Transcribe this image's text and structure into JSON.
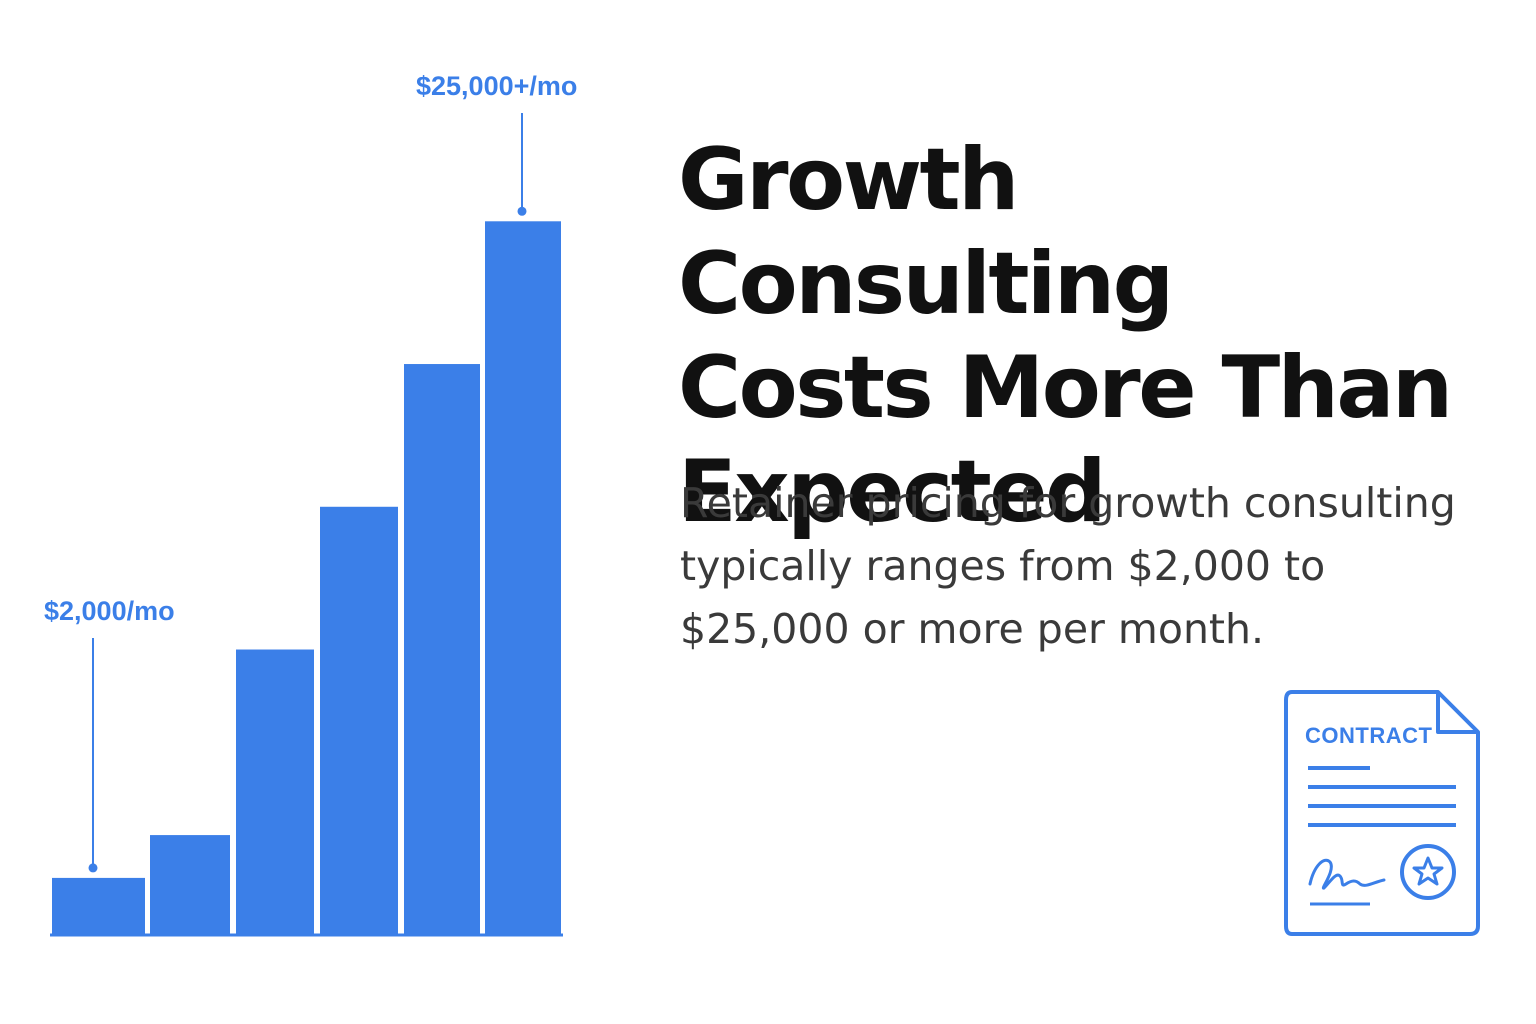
{
  "headline": {
    "line1": "Growth Consulting",
    "line2": "Costs More Than",
    "line3": "Expected"
  },
  "body": {
    "line1": "Retainer pricing for growth consulting",
    "line2": "typically ranges from $2,000 to",
    "line3": "$25,000 or more per month."
  },
  "contract_icon": {
    "label": "CONTRACT",
    "icon": "contract-document-icon"
  },
  "colors": {
    "accent": "#3b7fe8",
    "headline": "#111111",
    "body": "#3a3a3a"
  },
  "chart_data": {
    "type": "bar",
    "title": "",
    "xlabel": "",
    "ylabel": "",
    "values": [
      2000,
      3500,
      10000,
      15000,
      20000,
      25000
    ],
    "ylim": [
      0,
      31000
    ],
    "grid": false,
    "legend": "none",
    "annotations": [
      {
        "bar_index": 0,
        "text": "$2,000/mo"
      },
      {
        "bar_index": 5,
        "text": "$25,000+/mo"
      }
    ]
  }
}
